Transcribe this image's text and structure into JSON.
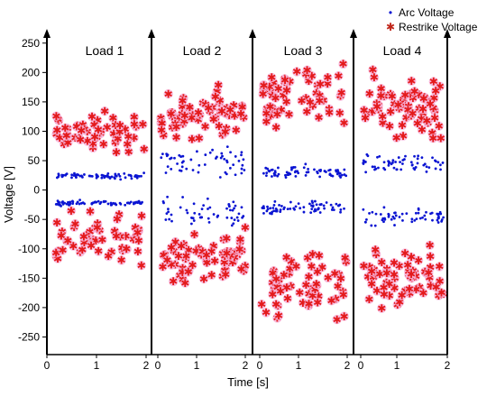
{
  "chart_data": {
    "type": "scatter",
    "title": "",
    "xlabel": "Time [s]",
    "ylabel": "Voltage [V]",
    "ylim": [
      -280,
      265
    ],
    "y_ticks": [
      250,
      200,
      150,
      100,
      50,
      0,
      -50,
      -100,
      -150,
      -200,
      -250
    ],
    "x_ticks_per_panel": [
      0,
      1,
      2
    ],
    "grid": false,
    "legend_position": "top-right",
    "panels": [
      {
        "name": "Load 1",
        "arc": {
          "pos_center": 24,
          "pos_spread": 3,
          "neg_center": -22,
          "neg_spread": 3,
          "n": 70
        },
        "restrike": {
          "pos_center": 95,
          "pos_spread": 20,
          "neg_center": -85,
          "neg_spread": 18,
          "n": 55
        }
      },
      {
        "name": "Load 2",
        "arc": {
          "pos_center": 45,
          "pos_spread": 18,
          "neg_center": -40,
          "neg_spread": 18,
          "n": 55
        },
        "restrike": {
          "pos_center": 130,
          "pos_spread": 22,
          "neg_center": -115,
          "neg_spread": 22,
          "n": 65
        }
      },
      {
        "name": "Load 3",
        "arc": {
          "pos_center": 30,
          "pos_spread": 8,
          "neg_center": -30,
          "neg_spread": 7,
          "n": 70
        },
        "restrike": {
          "pos_center": 160,
          "pos_spread": 30,
          "neg_center": -165,
          "neg_spread": 25,
          "n": 60
        }
      },
      {
        "name": "Load 4",
        "arc": {
          "pos_center": 45,
          "pos_spread": 10,
          "neg_center": -45,
          "neg_spread": 10,
          "n": 60
        },
        "restrike": {
          "pos_center": 145,
          "pos_spread": 25,
          "neg_center": -150,
          "neg_spread": 28,
          "n": 65
        }
      }
    ],
    "series": [
      {
        "name": "Arc Voltage",
        "color": "#0a14d2",
        "marker": "dot"
      },
      {
        "name": "Restrike Voltage",
        "color": "#e41a1c",
        "marker": "star"
      }
    ]
  }
}
